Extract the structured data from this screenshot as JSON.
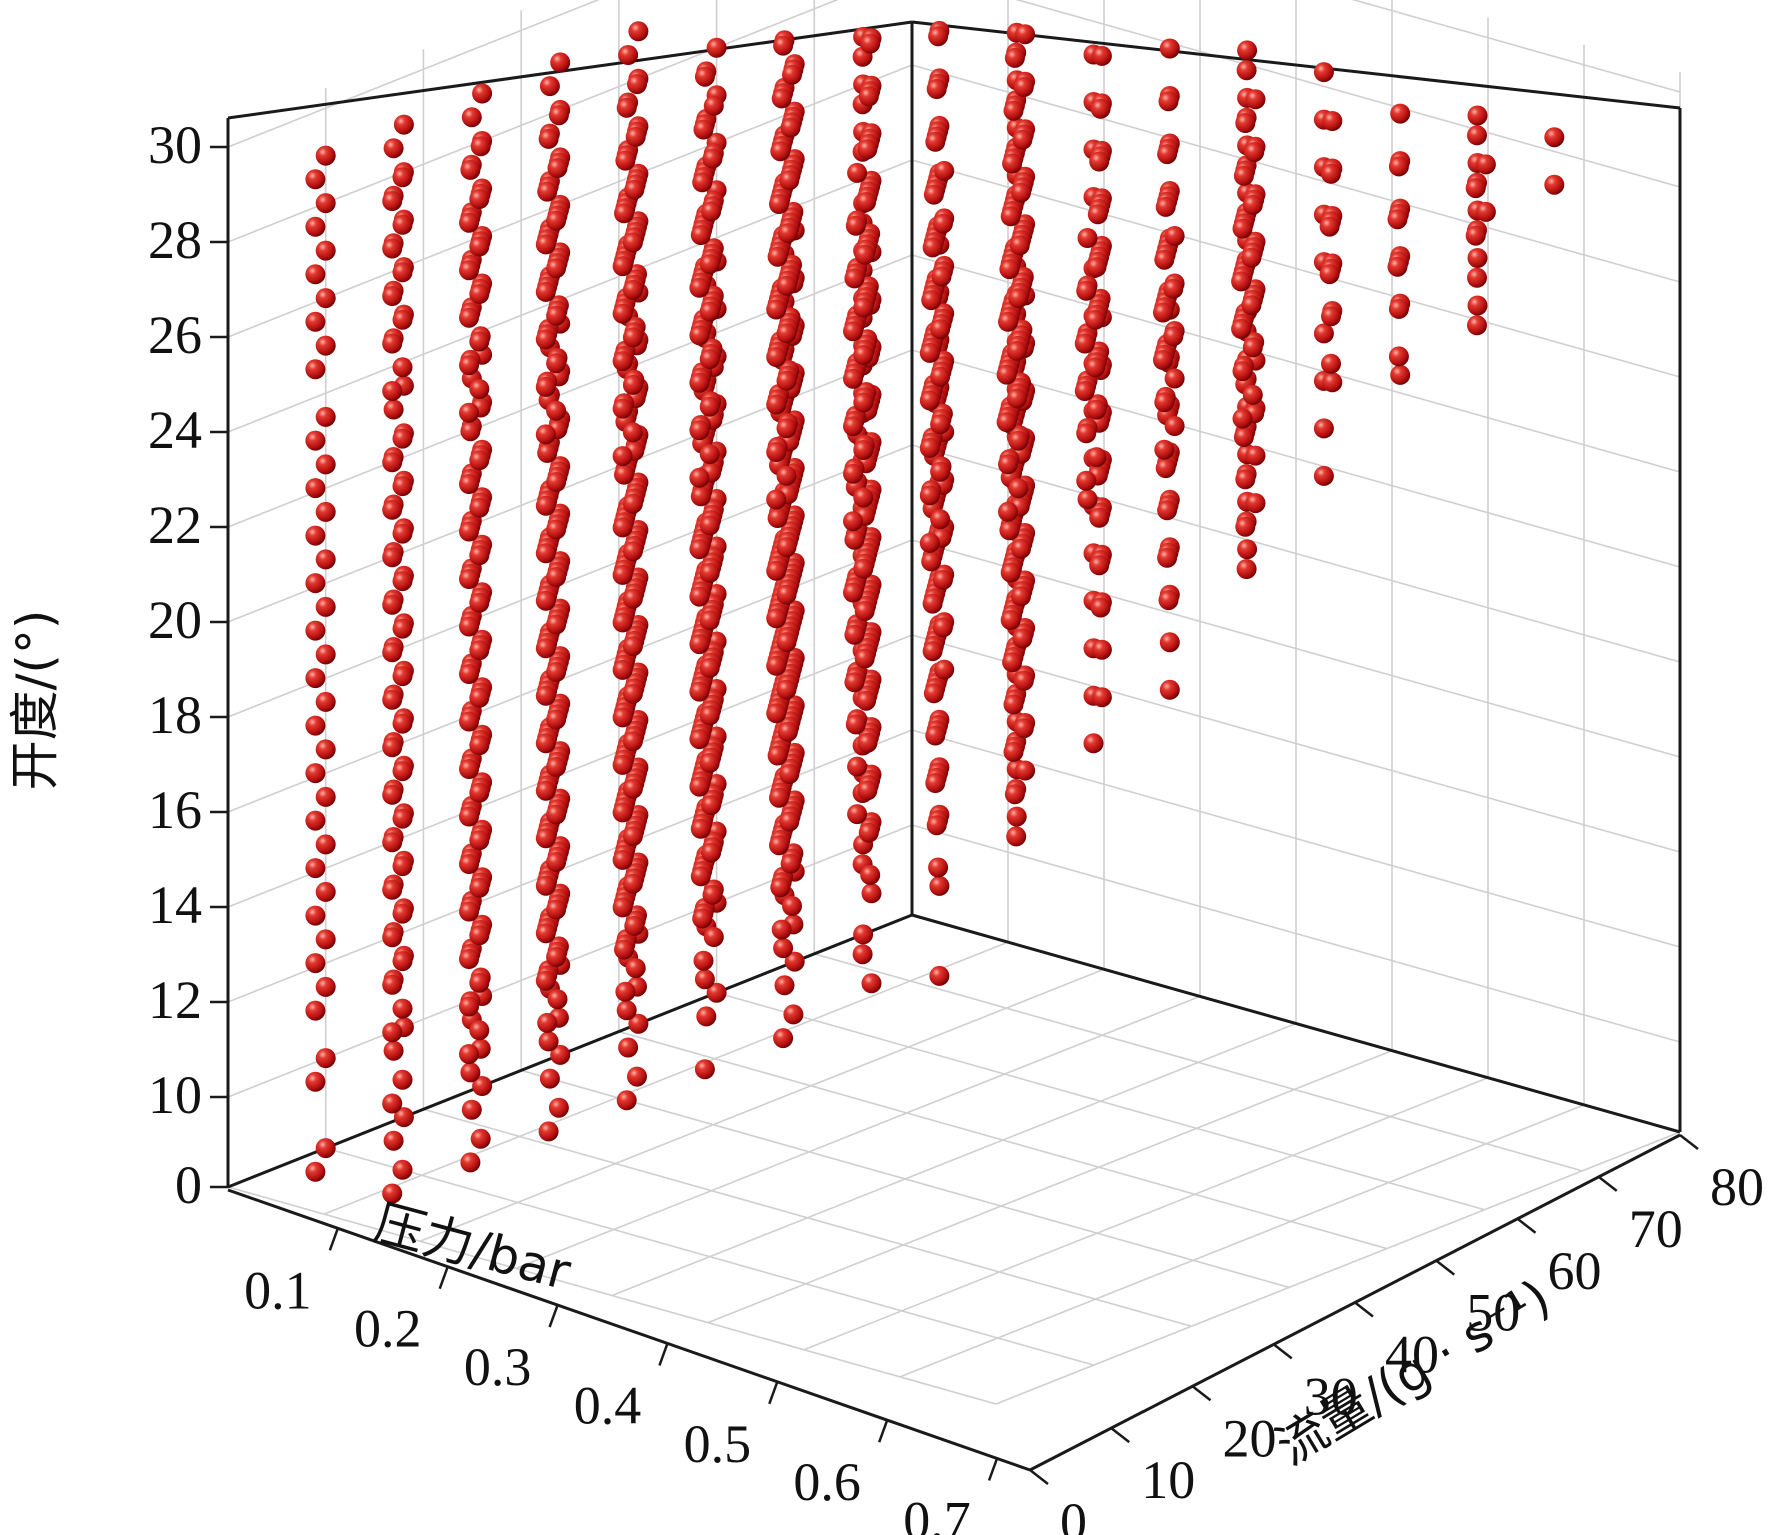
{
  "chart_data": {
    "type": "scatter3d",
    "xlabel": "压力/bar",
    "ylabel": "流量/(g · s⁻¹)",
    "zlabel": "开度/(°)",
    "x_ticks": [
      "0.1",
      "0.2",
      "0.3",
      "0.4",
      "0.5",
      "0.6",
      "0.7"
    ],
    "y_ticks": [
      "0",
      "10",
      "20",
      "30",
      "40",
      "50",
      "60",
      "70",
      "80"
    ],
    "z_ticks": [
      "0",
      "10",
      "12",
      "14",
      "16",
      "18",
      "20",
      "22",
      "24",
      "26",
      "28",
      "30"
    ],
    "xlim": [
      0.05,
      0.7
    ],
    "ylim": [
      0,
      80
    ],
    "zlim": [
      8,
      30
    ],
    "z_levels": [
      8,
      10,
      11.5,
      12.5,
      13.5,
      14.5,
      15.5,
      16.5,
      17.5,
      18.5,
      19.5,
      20.5,
      21.5,
      22.5,
      23.5,
      25,
      26,
      27,
      28,
      29
    ],
    "series": [
      {
        "marker_color": "#cc1c1c",
        "description_points": "sampled grid: opening level vs pressure (0.05–0.66 bar) and flow; flow at a given pressure rises with opening"
      }
    ],
    "grid": true,
    "marker_color": "#cc1c1c"
  }
}
